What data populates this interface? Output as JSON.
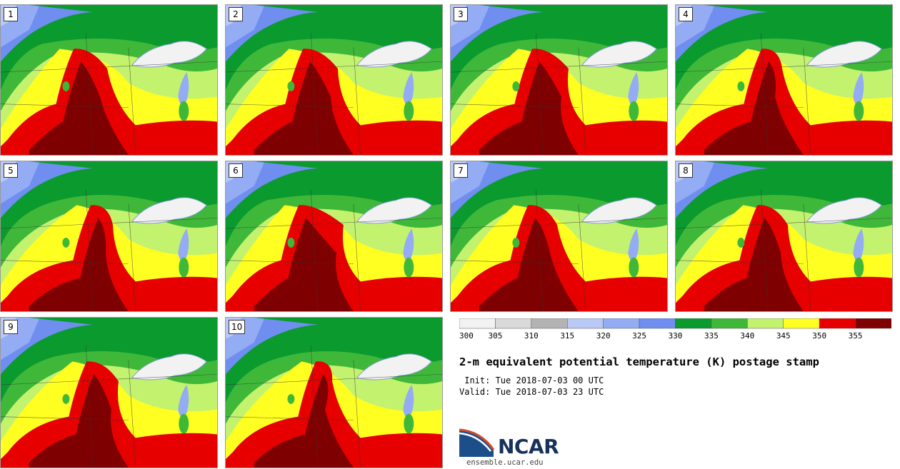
{
  "panels": [
    {
      "label": "1"
    },
    {
      "label": "2"
    },
    {
      "label": "3"
    },
    {
      "label": "4"
    },
    {
      "label": "5"
    },
    {
      "label": "6"
    },
    {
      "label": "7"
    },
    {
      "label": "8"
    },
    {
      "label": "9"
    },
    {
      "label": "10"
    }
  ],
  "colorbar": {
    "ticks": [
      "300",
      "305",
      "310",
      "315",
      "320",
      "325",
      "330",
      "335",
      "340",
      "345",
      "350",
      "355"
    ],
    "colors": [
      "#f2f2f2",
      "#d9d9d9",
      "#b3b3b3",
      "#b9c8f5",
      "#93acf4",
      "#6f8ef0",
      "#0a9a2e",
      "#3fb83a",
      "#c3f26e",
      "#ffff22",
      "#e60000",
      "#7f0000"
    ]
  },
  "title": "2-m equivalent potential temperature (K) postage stamp",
  "init_line": " Init: Tue 2018-07-03 00 UTC",
  "valid_line": "Valid: Tue 2018-07-03 23 UTC",
  "logo_text": "NCAR",
  "site": "ensemble.ucar.edu"
}
